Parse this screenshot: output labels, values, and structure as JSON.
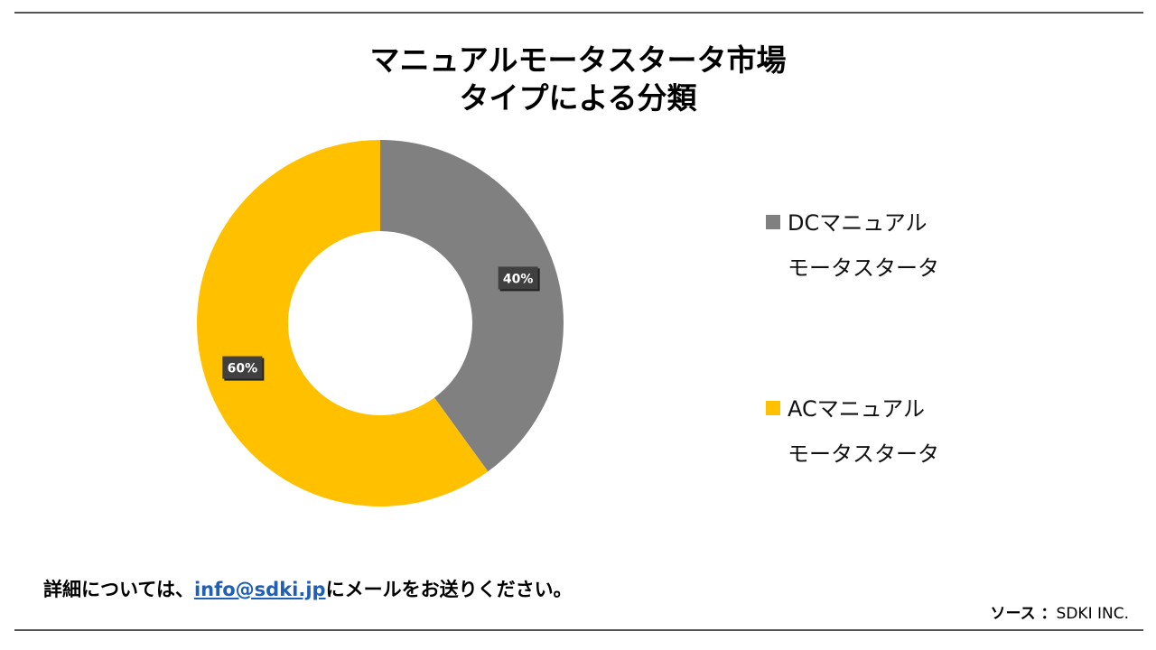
{
  "title_line1": "マニュアルモータスタータ市場",
  "title_line2": "タイプによる分類",
  "chart_data": {
    "type": "pie",
    "donut": true,
    "categories": [
      "DCマニュアルモータスタータ",
      "ACマニュアルモータスタータ"
    ],
    "values": [
      40,
      60
    ],
    "labels": [
      "40%",
      "60%"
    ],
    "colors": [
      "#808080",
      "#FFC000"
    ],
    "legend_position": "right"
  },
  "legend": {
    "items": [
      {
        "line1": "DCマニュアル",
        "line2": "モータスタータ",
        "color": "#808080"
      },
      {
        "line1": "ACマニュアル",
        "line2": "モータスタータ",
        "color": "#FFC000"
      }
    ]
  },
  "footer": {
    "note_prefix": "詳細については、",
    "email": "info@sdki.jp",
    "note_suffix": "にメールをお送りください。",
    "source_label": "ソース ：",
    "source_value": "SDKI INC."
  }
}
